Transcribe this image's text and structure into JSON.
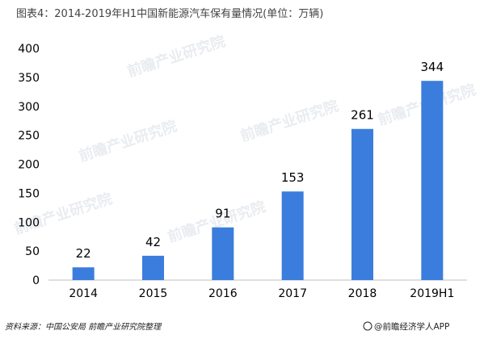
{
  "chart_data": {
    "type": "bar",
    "title": "图表4：2014-2019年H1中国新能源汽车保有量情况(单位：万辆)",
    "categories": [
      "2014",
      "2015",
      "2016",
      "2017",
      "2018",
      "2019H1"
    ],
    "values": [
      22,
      42,
      91,
      153,
      261,
      344
    ],
    "ylim": [
      0,
      400
    ],
    "yticks": [
      0,
      50,
      100,
      150,
      200,
      250,
      300,
      350,
      400
    ],
    "xlabel": "",
    "ylabel": "",
    "grid": false,
    "legend": "none",
    "bar_color": "#3b7ddd"
  },
  "source_note": "资料来源：中国公安局 前瞻产业研究院整理",
  "brand_text": "@前瞻经济学人APP",
  "watermark_text": "前瞻产业研究院"
}
